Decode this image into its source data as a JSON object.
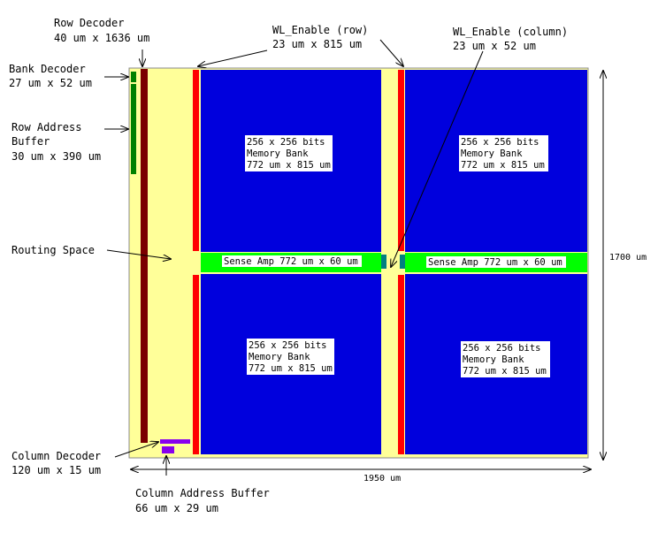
{
  "labels": {
    "row_decoder": [
      "Row Decoder",
      "40 um x 1636 um"
    ],
    "bank_decoder": [
      "Bank Decoder",
      "27 um x 52 um"
    ],
    "row_address_buffer": [
      "Row Address",
      "Buffer",
      "30 um x 390 um"
    ],
    "routing_space": "Routing Space",
    "column_decoder": [
      "Column Decoder",
      "120 um x 15 um"
    ],
    "column_address_buffer": [
      "Column Address Buffer",
      "66 um x 29 um"
    ],
    "wl_enable_row": [
      "WL_Enable (row)",
      "23 um x 815 um"
    ],
    "wl_enable_column": [
      "WL_Enable (column)",
      "23 um x 52 um"
    ]
  },
  "banks": [
    [
      "256 x 256 bits",
      "Memory Bank",
      "772 um x 815 um"
    ],
    [
      "256 x 256 bits",
      "Memory Bank",
      "772 um x 815 um"
    ],
    [
      "256 x 256 bits",
      "Memory Bank",
      "772 um x 815 um"
    ],
    [
      "256 x 256 bits",
      "Memory Bank",
      "772 um x 815 um"
    ]
  ],
  "sense_amps": [
    "Sense Amp 772 um x 60 um",
    "Sense Amp 772 um x 60 um"
  ],
  "dimensions": {
    "width": "1950 um",
    "height": "1700 um"
  },
  "colors": {
    "chip_background": "#ffff99",
    "memory_bank": "#0000dd",
    "sense_amp": "#00ff00",
    "wl_enable": "#ff0000",
    "row_decoder": "#7a0000",
    "row_address_buffer": "#008000",
    "column_decoder": "#8800ee",
    "wl_enable_column": "#008080"
  }
}
